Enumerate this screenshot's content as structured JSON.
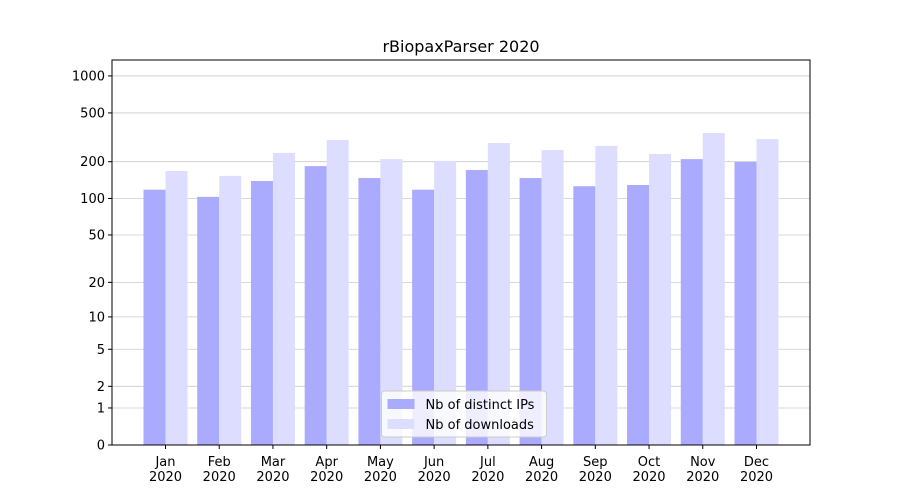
{
  "chart_data": {
    "type": "bar",
    "title": "rBiopaxParser 2020",
    "categories": [
      [
        "Jan",
        "2020"
      ],
      [
        "Feb",
        "2020"
      ],
      [
        "Mar",
        "2020"
      ],
      [
        "Apr",
        "2020"
      ],
      [
        "May",
        "2020"
      ],
      [
        "Jun",
        "2020"
      ],
      [
        "Jul",
        "2020"
      ],
      [
        "Aug",
        "2020"
      ],
      [
        "Sep",
        "2020"
      ],
      [
        "Oct",
        "2020"
      ],
      [
        "Nov",
        "2020"
      ],
      [
        "Dec",
        "2020"
      ]
    ],
    "series": [
      {
        "name": "Nb of distinct IPs",
        "color": "#aaaaff",
        "values": [
          118,
          103,
          139,
          184,
          147,
          118,
          171,
          147,
          126,
          129,
          210,
          199
        ]
      },
      {
        "name": "Nb of downloads",
        "color": "#ddddff",
        "values": [
          168,
          153,
          236,
          301,
          210,
          203,
          284,
          249,
          269,
          231,
          343,
          306
        ]
      }
    ],
    "yscale": "log1p",
    "ylim": [
      0,
      1348
    ],
    "yticks": [
      0,
      1,
      2,
      5,
      10,
      20,
      50,
      100,
      200,
      500,
      1000
    ],
    "grid": true,
    "legend": "lower center"
  }
}
